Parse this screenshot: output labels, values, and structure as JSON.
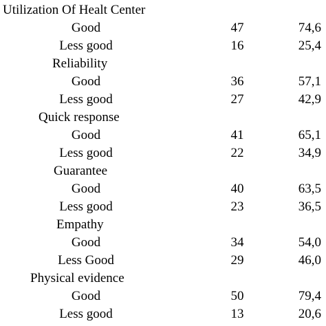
{
  "groups": [
    {
      "title": "Utilization Of Healt Center",
      "rows": [
        {
          "label": "Good",
          "n": "47",
          "pct": "74,6"
        },
        {
          "label": "Less good",
          "n": "16",
          "pct": "25,4"
        }
      ]
    },
    {
      "title": "Reliability",
      "rows": [
        {
          "label": "Good",
          "n": "36",
          "pct": "57,1"
        },
        {
          "label": "Less good",
          "n": "27",
          "pct": "42,9"
        }
      ]
    },
    {
      "title": "Quick response",
      "rows": [
        {
          "label": "Good",
          "n": "41",
          "pct": "65,1"
        },
        {
          "label": "Less good",
          "n": "22",
          "pct": "34,9"
        }
      ]
    },
    {
      "title": "Guarantee",
      "rows": [
        {
          "label": "Good",
          "n": "40",
          "pct": "63,5"
        },
        {
          "label": "Less good",
          "n": "23",
          "pct": "36,5"
        }
      ]
    },
    {
      "title": "Empathy",
      "rows": [
        {
          "label": "Good",
          "n": "34",
          "pct": "54,0"
        },
        {
          "label": "Less Good",
          "n": "29",
          "pct": "46,0"
        }
      ]
    },
    {
      "title": "Physical evidence",
      "rows": [
        {
          "label": "Good",
          "n": "50",
          "pct": "79,4"
        },
        {
          "label": "Less good",
          "n": "13",
          "pct": "20,6"
        }
      ]
    }
  ]
}
